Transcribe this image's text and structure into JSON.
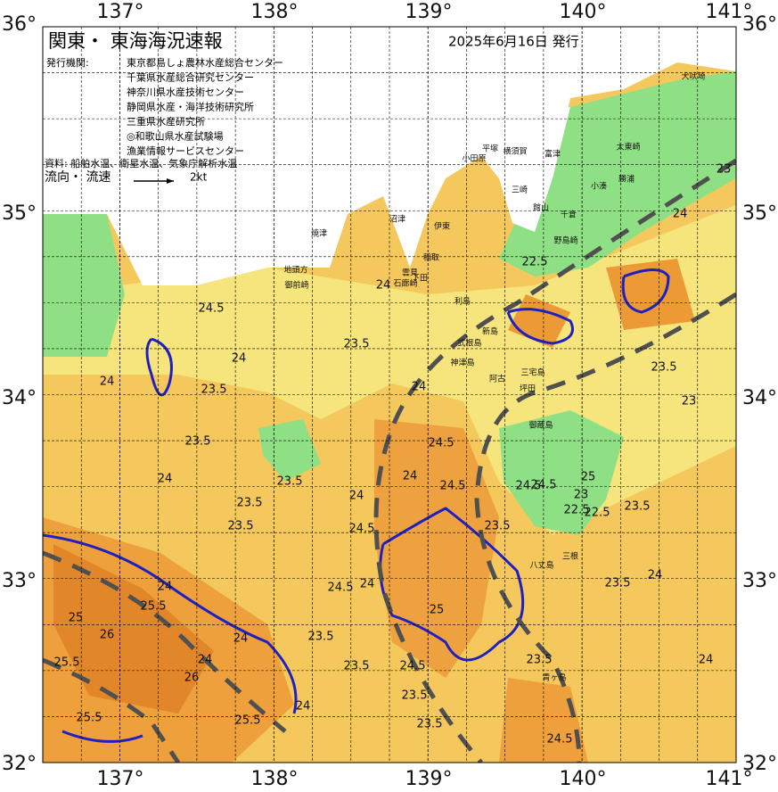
{
  "header": {
    "title": "関東・ 東海海況速報",
    "date": "2025年6月16日 発行",
    "agencies_label": "発行機関:",
    "agencies": [
      "東京都島しょ農林水産総合センター",
      "千葉県水産総合研究センター",
      "神奈川県水産技術センター",
      "静岡県水産・海洋技術研究所",
      "三重県水産研究所",
      "◎和歌山県水産試験場",
      "漁業情報サービスセンター"
    ],
    "source": "資料: 船舶水温、衛星水温、気象庁解析水温",
    "legend_label": "流向・ 流速",
    "legend_scale": "2kt"
  },
  "map": {
    "lon_labels_top": [
      "137°",
      "138°",
      "139°",
      "140°",
      "141°"
    ],
    "lon_labels_bottom": [
      "137°",
      "138°",
      "139°",
      "140°",
      "141°"
    ],
    "lat_labels_left": [
      "36°",
      "35°",
      "34°",
      "33°",
      "32°"
    ],
    "lat_labels_right": [
      "36°",
      "35°",
      "34°",
      "33°",
      "32°"
    ],
    "places": [
      "犬吠埼",
      "太東崎",
      "勝浦",
      "小湊",
      "富津",
      "館山",
      "千倉",
      "野島崎",
      "平塚",
      "横須賀",
      "小田原",
      "三崎",
      "伊東",
      "稲取",
      "下田",
      "石廊崎",
      "雲見",
      "沼津",
      "焼津",
      "地頭方",
      "御前崎",
      "利島",
      "新島",
      "式根島",
      "神津島",
      "三宅島",
      "阿古",
      "坪田",
      "御蔵島",
      "八丈島",
      "三根",
      "青ヶ島"
    ],
    "contour_labels": [
      "24.5",
      "24",
      "23.5",
      "24",
      "24.5",
      "24",
      "23.5",
      "24",
      "24",
      "23.5",
      "23.5",
      "24",
      "23",
      "24",
      "24.5",
      "23.5",
      "24",
      "24.5",
      "24.5",
      "25",
      "23.5",
      "22.5",
      "22.5",
      "23",
      "23.5",
      "23.5",
      "24",
      "24",
      "25",
      "25.5",
      "26",
      "26",
      "25.5",
      "25.5",
      "25.5",
      "23.5",
      "24.5",
      "24",
      "24",
      "24",
      "23.5",
      "23.5",
      "24",
      "24",
      "23.5",
      "24.5",
      "23.5",
      "23.5",
      "23.5",
      "24.5",
      "25",
      "22.5",
      "23",
      "24.5"
    ]
  }
}
